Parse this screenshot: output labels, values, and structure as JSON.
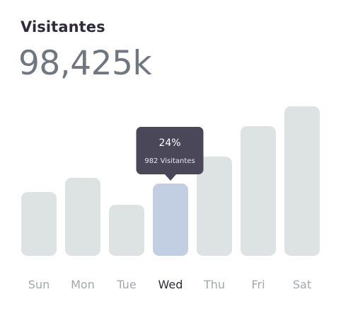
{
  "card": {
    "title": "Visitantes",
    "total": "98,425k"
  },
  "colors": {
    "bar": "#dde3e2",
    "bar_active": "#c2cfe2",
    "tooltip_bg": "#4a4759",
    "label": "#a3a8ad",
    "label_active": "#2f2b3d"
  },
  "chart_data": {
    "type": "bar",
    "categories": [
      "Sun",
      "Mon",
      "Tue",
      "Wed",
      "Thu",
      "Fri",
      "Sat"
    ],
    "values": [
      90,
      110,
      72,
      102,
      140,
      183,
      211
    ],
    "active_index": 3,
    "grid": false,
    "tooltip": {
      "category": "Wed",
      "percent": "24%",
      "detail": "982 Visitantes"
    }
  }
}
